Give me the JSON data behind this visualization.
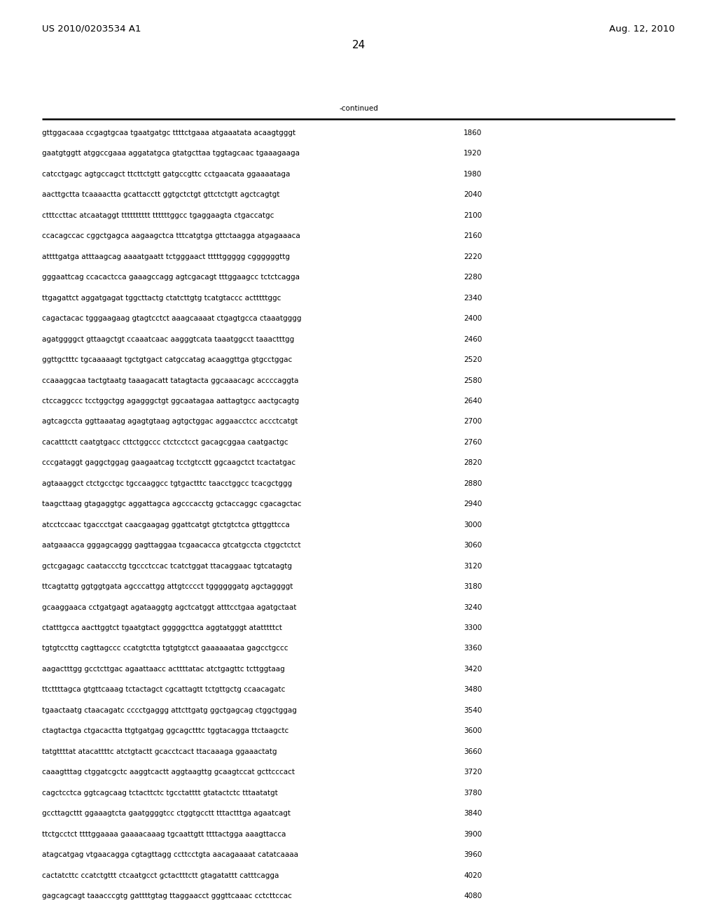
{
  "header_left": "US 2010/0203534 A1",
  "header_right": "Aug. 12, 2010",
  "page_number": "24",
  "continued_label": "-continued",
  "background_color": "#ffffff",
  "text_color": "#000000",
  "font_size_header": 9.5,
  "font_size_body": 7.5,
  "font_size_page": 11,
  "sequence_lines": [
    [
      "gttggacaaa ccgagtgcaa tgaatgatgc ttttctgaaa atgaaatata acaagtgggt",
      "1860"
    ],
    [
      "gaatgtggtt atggccgaaa aggatatgca gtatgcttaa tggtagcaac tgaaagaaga",
      "1920"
    ],
    [
      "catcctgagc agtgccagct ttcttctgtt gatgccgttc cctgaacata ggaaaataga",
      "1980"
    ],
    [
      "aacttgctta tcaaaactta gcattacctt ggtgctctgt gttctctgtt agctcagtgt",
      "2040"
    ],
    [
      "ctttccttac atcaataggt tttttttttt ttttttggcc tgaggaagta ctgaccatgc",
      "2100"
    ],
    [
      "ccacagccac cggctgagca aagaagctca tttcatgtga gttctaagga atgagaaaca",
      "2160"
    ],
    [
      "attttgatga atttaagcag aaaatgaatt tctgggaact tttttggggg cggggggttg",
      "2220"
    ],
    [
      "gggaattcag ccacactcca gaaagccagg agtcgacagt tttggaagcc tctctcagga",
      "2280"
    ],
    [
      "ttgagattct aggatgagat tggcttactg ctatcttgtg tcatgtaccc actttttggc",
      "2340"
    ],
    [
      "cagactacac tgggaagaag gtagtcctct aaagcaaaat ctgagtgcca ctaaatgggg",
      "2400"
    ],
    [
      "agatggggct gttaagctgt ccaaatcaac aagggtcata taaatggcct taaactttgg",
      "2460"
    ],
    [
      "ggttgctttc tgcaaaaagt tgctgtgact catgccatag acaaggttga gtgcctggac",
      "2520"
    ],
    [
      "ccaaaggcaa tactgtaatg taaagacatt tatagtacta ggcaaacagc accccaggta",
      "2580"
    ],
    [
      "ctccaggccc tcctggctgg agagggctgt ggcaatagaa aattagtgcc aactgcagtg",
      "2640"
    ],
    [
      "agtcagccta ggttaaatag agagtgtaag agtgctggac aggaacctcc accctcatgt",
      "2700"
    ],
    [
      "cacatttctt caatgtgacc cttctggccc ctctcctcct gacagcggaa caatgactgc",
      "2760"
    ],
    [
      "cccgataggt gaggctggag gaagaatcag tcctgtcctt ggcaagctct tcactatgac",
      "2820"
    ],
    [
      "agtaaaggct ctctgcctgc tgccaaggcc tgtgactttc taacctggcc tcacgctggg",
      "2880"
    ],
    [
      "taagcttaag gtagaggtgc aggattagca agcccacctg gctaccaggc cgacagctac",
      "2940"
    ],
    [
      "atcctccaac tgaccctgat caacgaagag ggattcatgt gtctgtctca gttggttcca",
      "3000"
    ],
    [
      "aatgaaacca gggagcaggg gagttaggaa tcgaacacca gtcatgccta ctggctctct",
      "3060"
    ],
    [
      "gctcgagagc caataccctg tgccctccac tcatctggat ttacaggaac tgtcatagtg",
      "3120"
    ],
    [
      "ttcagtattg ggtggtgata agcccattgg attgtcccct tggggggatg agctaggggt",
      "3180"
    ],
    [
      "gcaaggaaca cctgatgagt agataaggtg agctcatggt atttcctgaa agatgctaat",
      "3240"
    ],
    [
      "ctatttgcca aacttggtct tgaatgtact gggggcttca aggtatgggt atatttttct",
      "3300"
    ],
    [
      "tgtgtccttg cagttagccc ccatgtctta tgtgtgtcct gaaaaaataa gagcctgccc",
      "3360"
    ],
    [
      "aagactttgg gcctcttgac agaattaacc acttttatac atctgagttc tcttggtaag",
      "3420"
    ],
    [
      "ttcttttagca gtgttcaaag tctactagct cgcattagtt tctgttgctg ccaacagatc",
      "3480"
    ],
    [
      "tgaactaatg ctaacagatc cccctgaggg attcttgatg ggctgagcag ctggctggag",
      "3540"
    ],
    [
      "ctagtactga ctgacactta ttgtgatgag ggcagctttc tggtacagga ttctaagctc",
      "3600"
    ],
    [
      "tatgttttat atacattttc atctgtactt gcacctcact ttacaaaga ggaaactatg",
      "3660"
    ],
    [
      "caaagtttag ctggatcgctc aaggtcactt aggtaagttg gcaagtccat gcttcccact",
      "3720"
    ],
    [
      "cagctcctca ggtcagcaag tctacttctc tgcctatttt gtatactctc tttaatatgt",
      "3780"
    ],
    [
      "gccttagcttt ggaaagtcta gaatggggtcc ctggtgcctt tttactttga agaatcagt",
      "3840"
    ],
    [
      "ttctgcctct ttttggaaaa gaaaacaaag tgcaattgtt ttttactgga aaagttacca",
      "3900"
    ],
    [
      "atagcatgag vtgaacagga cgtagttagg ccttcctgta aacagaaaat catatcaaaa",
      "3960"
    ],
    [
      "cactatcttc ccatctgttt ctcaatgcct gctactttctt gtagatattt catttcagga",
      "4020"
    ],
    [
      "gagcagcagt taaacccgtg gattttgtag ttaggaacct gggttcaaac cctcttccac",
      "4080"
    ]
  ]
}
